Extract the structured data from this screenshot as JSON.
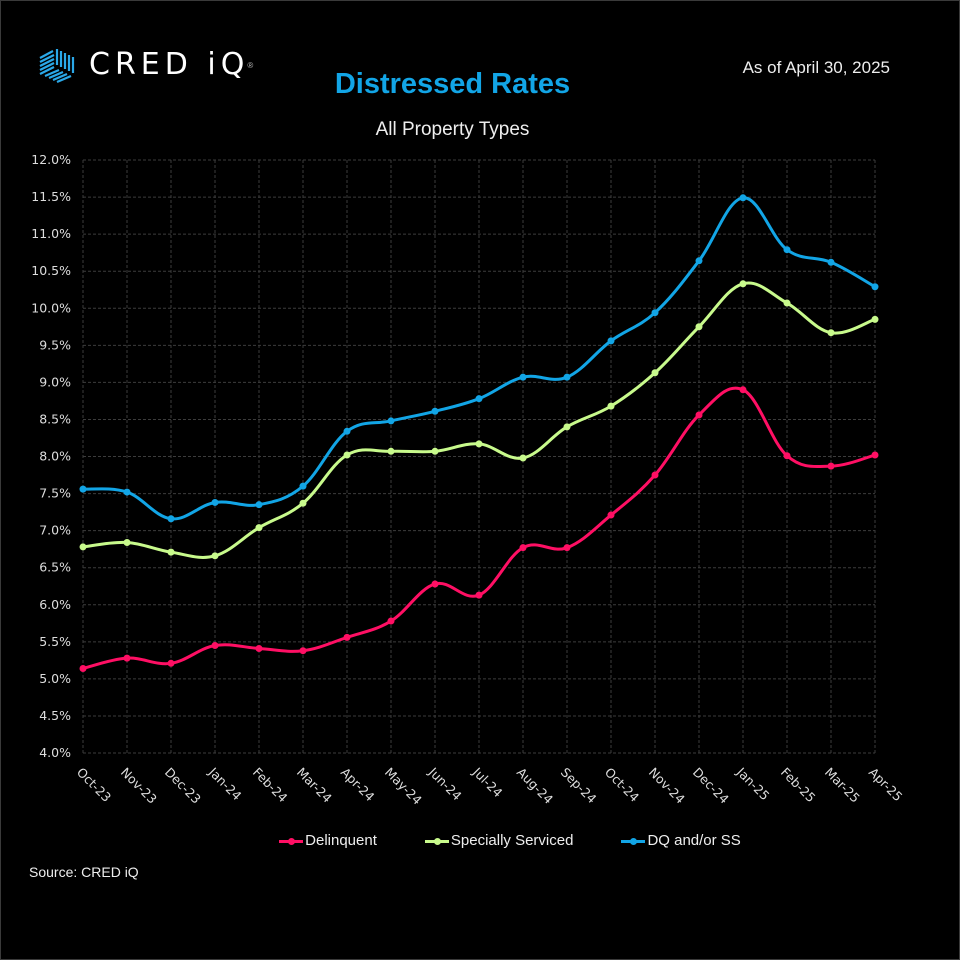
{
  "header": {
    "logo_text": "CRED iQ",
    "logo_reg": "®",
    "title": "Distressed Rates",
    "subtitle": "All Property Types",
    "as_of": "As of April 30, 2025"
  },
  "footer": {
    "source": "Source:  CRED iQ"
  },
  "colors": {
    "title": "#12a5e6",
    "delinquent": "#ff0f64",
    "specially_serviced": "#c8fa8c",
    "dq_or_ss": "#12a5e6",
    "grid": "#3c3c3c"
  },
  "chart_data": {
    "type": "line",
    "title": "Distressed Rates",
    "subtitle": "All Property Types",
    "xlabel": "",
    "ylabel": "",
    "ylim": [
      4.0,
      12.0
    ],
    "ytick_step": 0.5,
    "yticks": [
      "4.0%",
      "4.5%",
      "5.0%",
      "5.5%",
      "6.0%",
      "6.5%",
      "7.0%",
      "7.5%",
      "8.0%",
      "8.5%",
      "9.0%",
      "9.5%",
      "10.0%",
      "10.5%",
      "11.0%",
      "11.5%",
      "12.0%"
    ],
    "grid": true,
    "smooth": true,
    "legend_position": "bottom",
    "categories": [
      "Oct-23",
      "Nov-23",
      "Dec-23",
      "Jan-24",
      "Feb-24",
      "Mar-24",
      "Apr-24",
      "May-24",
      "Jun-24",
      "Jul-24",
      "Aug-24",
      "Sep-24",
      "Oct-24",
      "Nov-24",
      "Dec-24",
      "Jan-25",
      "Feb-25",
      "Mar-25",
      "Apr-25"
    ],
    "series": [
      {
        "name": "Delinquent",
        "color": "#ff0f64",
        "values": [
          5.14,
          5.28,
          5.21,
          5.45,
          5.41,
          5.38,
          5.56,
          5.78,
          6.28,
          6.13,
          6.77,
          6.77,
          7.21,
          7.75,
          8.56,
          8.9,
          8.01,
          7.87,
          8.02
        ]
      },
      {
        "name": "Specially Serviced",
        "color": "#c8fa8c",
        "values": [
          6.78,
          6.84,
          6.71,
          6.66,
          7.04,
          7.37,
          8.02,
          8.07,
          8.07,
          8.17,
          7.98,
          8.4,
          8.68,
          9.13,
          9.75,
          10.33,
          10.07,
          9.67,
          9.85
        ]
      },
      {
        "name": "DQ and/or SS",
        "color": "#12a5e6",
        "values": [
          7.56,
          7.52,
          7.16,
          7.38,
          7.35,
          7.6,
          8.34,
          8.48,
          8.61,
          8.78,
          9.07,
          9.07,
          9.56,
          9.94,
          10.64,
          11.49,
          10.79,
          10.62,
          10.29
        ]
      }
    ]
  }
}
